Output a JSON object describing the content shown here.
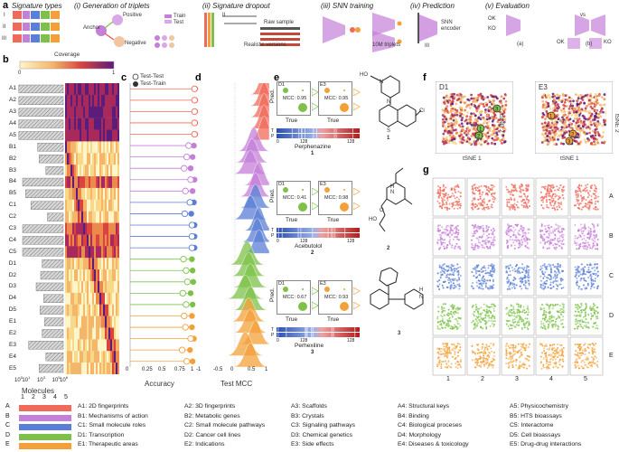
{
  "panel_a": {
    "label": "a",
    "titles": {
      "sig_types": "Signature types",
      "triplets": "(i) Generation of triplets",
      "dropout": "(ii) Signature dropout",
      "snn_training": "(iii) SNN training",
      "prediction": "(iv) Prediction",
      "evaluation": "(v) Evaluation"
    },
    "roman": [
      "I",
      "II",
      "III"
    ],
    "anchor": "Anchor",
    "positive": "Positive",
    "negative": "Negative",
    "train": "Train",
    "test": "Test",
    "raw_sample": "Raw sample",
    "realistic": "Realistic versions",
    "triplets_10m": "10M triplets",
    "snn_encoder": "SNN\nencoder",
    "ok": "OK",
    "ko": "KO",
    "vs": "vs",
    "sub_a": "(a)",
    "sub_b": "(b)"
  },
  "panel_b": {
    "label": "b",
    "coverage": "Coverage",
    "cov_min": "0",
    "cov_max": "1",
    "rows": [
      "A1",
      "A2",
      "A3",
      "A4",
      "A5",
      "B1",
      "B2",
      "B3",
      "B4",
      "B5",
      "C1",
      "C2",
      "C3",
      "C4",
      "C5",
      "D1",
      "D2",
      "D3",
      "D4",
      "D5",
      "E1",
      "E2",
      "E3",
      "E4",
      "E5"
    ],
    "molecules_log10": [
      5.9,
      5.9,
      5.9,
      5.9,
      5.9,
      3.4,
      3.2,
      2.3,
      5.4,
      5.0,
      4.3,
      2.1,
      5.4,
      5.4,
      5.4,
      2.8,
      3.0,
      3.6,
      2.6,
      3.1,
      2.5,
      2.8,
      4.6,
      2.3,
      3.2
    ],
    "xlabel": "Molecules",
    "xticks": [
      "10",
      "10",
      "10",
      "10",
      "10"
    ],
    "xticks_exp": [
      "0",
      "1",
      "3",
      "5",
      "6"
    ]
  },
  "panel_c": {
    "label": "c",
    "legend_test_test": "Test-Test",
    "legend_test_train": "Test-Train",
    "xlabel": "Accuracy",
    "xticks": [
      "0",
      "0.25",
      "0.5",
      "0.75",
      "1"
    ],
    "accuracy_test_test": [
      0.99,
      0.99,
      0.99,
      0.99,
      0.99,
      0.9,
      0.87,
      0.83,
      0.93,
      0.85,
      0.92,
      0.84,
      0.95,
      0.95,
      0.95,
      0.82,
      0.86,
      0.88,
      0.81,
      0.86,
      0.83,
      0.85,
      0.93,
      0.8,
      0.87
    ],
    "accuracy_test_train": [
      1.0,
      1.0,
      1.0,
      1.0,
      1.0,
      0.98,
      0.96,
      0.93,
      0.99,
      0.96,
      0.98,
      0.94,
      0.99,
      0.99,
      0.99,
      0.95,
      0.96,
      0.97,
      0.93,
      0.96,
      0.95,
      0.95,
      0.98,
      0.92,
      0.96
    ]
  },
  "panel_d": {
    "label": "d",
    "xlabel": "Test MCC",
    "xticks": [
      "-1",
      "-0.5",
      "0",
      "0.5",
      "1"
    ],
    "mode_mcc": [
      0.85,
      0.85,
      0.85,
      0.85,
      0.85,
      0.55,
      0.5,
      0.45,
      0.7,
      0.6,
      0.6,
      0.45,
      0.7,
      0.65,
      0.7,
      0.35,
      0.4,
      0.45,
      0.3,
      0.45,
      0.4,
      0.45,
      0.6,
      0.3,
      0.45
    ]
  },
  "panel_e": {
    "label": "e",
    "pred": "Pred.",
    "true": "True",
    "mcc_prefix": "MCC:",
    "dataset_left": "D1",
    "dataset_right": "E3",
    "tick_0": "0",
    "tick_128": "128",
    "tp_t": "T",
    "tp_p": "P",
    "compounds": [
      {
        "name": "Perphenazine",
        "number": "1",
        "mcc_left": "0.95",
        "mcc_right": "0.95"
      },
      {
        "name": "Acebutolol",
        "number": "2",
        "mcc_left": "0.41",
        "mcc_right": "0.98"
      },
      {
        "name": "Perhexiline",
        "number": "3",
        "mcc_left": "0.67",
        "mcc_right": "0.93"
      }
    ],
    "struct_labels": {
      "ho": "HO",
      "cl": "Cl",
      "n": "N",
      "s": "S",
      "h": "H",
      "o": "O"
    }
  },
  "panel_f": {
    "label": "f",
    "left_title": "D1",
    "right_title": "E3",
    "x_label": "tSNE 1",
    "y_label": "tSNE 2",
    "markers": [
      "1",
      "2",
      "3"
    ]
  },
  "panel_g": {
    "label": "g",
    "row_labels": [
      "A",
      "B",
      "C",
      "D",
      "E"
    ],
    "col_labels": [
      "1",
      "2",
      "3",
      "4",
      "5"
    ]
  },
  "legend": {
    "grid_cols": [
      "1",
      "2",
      "3",
      "4",
      "5"
    ],
    "grid_rows": [
      "A",
      "B",
      "C",
      "D",
      "E"
    ],
    "colors": {
      "A": "#f06a5a",
      "B": "#c47fd8",
      "C": "#5b7fd6",
      "D": "#7dc14a",
      "E": "#f3a03a"
    },
    "items": [
      [
        "A1: 2D fingerprints",
        "A2: 3D fingerprints",
        "A3: Scaffolds",
        "A4: Structural keys",
        "A5: Physicochemistry"
      ],
      [
        "B1: Mechanisms of action",
        "B2: Metabolic genes",
        "B3: Crystals",
        "B4: Binding",
        "B5: HTS bioassays"
      ],
      [
        "C1: Small molecule roles",
        "C2: Small molecule pathways",
        "C3: Signaling pathways",
        "C4: Biological proceses",
        "C5: Interactome"
      ],
      [
        "D1: Transcription",
        "D2: Cancer cell lines",
        "D3: Chemical genetics",
        "D4: Morphology",
        "D5: Cell bioassays"
      ],
      [
        "E1: Therapeutic areas",
        "E2: Indications",
        "E3: Side effects",
        "E4: Diseases & toxicology",
        "E5: Drug-drug interactions"
      ]
    ]
  }
}
